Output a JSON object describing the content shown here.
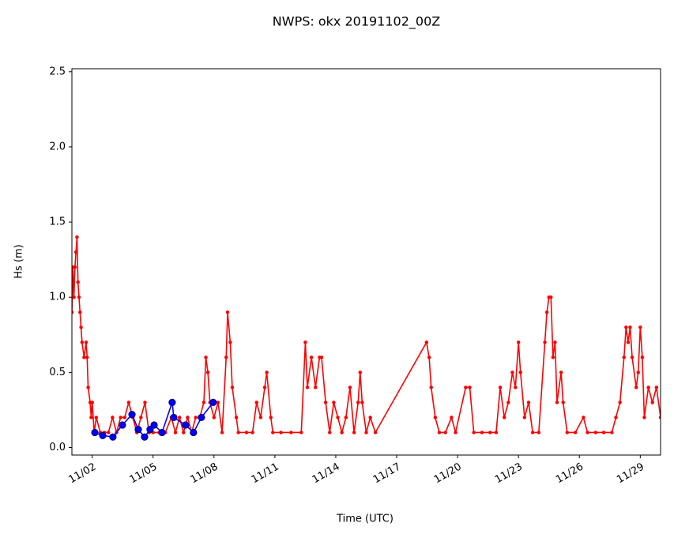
{
  "chart_data": {
    "type": "line",
    "title": "NWPS: okx 20191102_00Z",
    "x_label": "Time (UTC)",
    "y_label": "Hs (m)",
    "xlim": [
      1,
      30
    ],
    "ylim": [
      -0.05,
      2.52
    ],
    "xticks": [
      {
        "value": 2,
        "label": "11/02"
      },
      {
        "value": 5,
        "label": "11/05"
      },
      {
        "value": 8,
        "label": "11/08"
      },
      {
        "value": 11,
        "label": "11/11"
      },
      {
        "value": 14,
        "label": "11/14"
      },
      {
        "value": 17,
        "label": "11/17"
      },
      {
        "value": 20,
        "label": "11/20"
      },
      {
        "value": 23,
        "label": "11/23"
      },
      {
        "value": 26,
        "label": "11/26"
      },
      {
        "value": 29,
        "label": "11/29"
      }
    ],
    "yticks": [
      {
        "value": 0,
        "label": "0.0"
      },
      0.5,
      {
        "value": 1,
        "label": "1.0"
      },
      1.5,
      {
        "value": 2,
        "label": "2.0"
      },
      2.5
    ],
    "series": [
      {
        "color": "#ff0000",
        "marker": "dot",
        "x": [
          1.0,
          1.05,
          1.1,
          1.15,
          1.2,
          1.25,
          1.3,
          1.35,
          1.4,
          1.45,
          1.5,
          1.6,
          1.7,
          1.75,
          1.8,
          1.9,
          1.95,
          2.0,
          2.1,
          2.2,
          2.4,
          2.6,
          2.8,
          3.0,
          3.2,
          3.4,
          3.6,
          3.8,
          4.0,
          4.2,
          4.4,
          4.6,
          4.8,
          5.0,
          5.3,
          5.6,
          5.9,
          6.1,
          6.3,
          6.5,
          6.7,
          6.9,
          7.1,
          7.3,
          7.5,
          7.6,
          7.7,
          7.8,
          8.0,
          8.2,
          8.4,
          8.6,
          8.67,
          8.8,
          8.9,
          9.1,
          9.2,
          9.6,
          9.9,
          10.1,
          10.3,
          10.5,
          10.6,
          10.8,
          10.9,
          11.3,
          11.8,
          12.3,
          12.5,
          12.6,
          12.8,
          13.0,
          13.2,
          13.3,
          13.5,
          13.7,
          13.9,
          14.1,
          14.3,
          14.5,
          14.7,
          14.9,
          15.1,
          15.2,
          15.3,
          15.5,
          15.7,
          15.95,
          18.47,
          18.6,
          18.7,
          18.9,
          19.1,
          19.4,
          19.7,
          19.9,
          20.4,
          20.6,
          20.8,
          21.2,
          21.6,
          21.9,
          22.1,
          22.3,
          22.5,
          22.7,
          22.85,
          23.0,
          23.1,
          23.3,
          23.5,
          23.7,
          24.0,
          24.3,
          24.4,
          24.5,
          24.6,
          24.7,
          24.8,
          24.9,
          25.1,
          25.2,
          25.4,
          25.8,
          26.2,
          26.4,
          26.8,
          27.2,
          27.6,
          27.8,
          28.0,
          28.2,
          28.3,
          28.4,
          28.5,
          28.6,
          28.8,
          28.9,
          29.0,
          29.1,
          29.2,
          29.4,
          29.6,
          29.8,
          30.0
        ],
        "values": [
          0.9,
          1.2,
          1.0,
          1.2,
          1.3,
          1.4,
          1.1,
          1.0,
          0.9,
          0.8,
          0.7,
          0.6,
          0.7,
          0.6,
          0.4,
          0.3,
          0.2,
          0.3,
          0.1,
          0.2,
          0.1,
          0.1,
          0.1,
          0.2,
          0.1,
          0.2,
          0.2,
          0.3,
          0.2,
          0.1,
          0.2,
          0.3,
          0.1,
          0.1,
          0.1,
          0.1,
          0.2,
          0.1,
          0.2,
          0.1,
          0.2,
          0.1,
          0.2,
          0.2,
          0.3,
          0.6,
          0.5,
          0.3,
          0.2,
          0.3,
          0.1,
          0.6,
          0.9,
          0.7,
          0.4,
          0.2,
          0.1,
          0.1,
          0.1,
          0.3,
          0.2,
          0.4,
          0.5,
          0.2,
          0.1,
          0.1,
          0.1,
          0.1,
          0.7,
          0.4,
          0.6,
          0.4,
          0.6,
          0.6,
          0.3,
          0.1,
          0.3,
          0.2,
          0.1,
          0.2,
          0.4,
          0.1,
          0.3,
          0.5,
          0.3,
          0.1,
          0.2,
          0.1,
          0.7,
          0.6,
          0.4,
          0.2,
          0.1,
          0.1,
          0.2,
          0.1,
          0.4,
          0.4,
          0.1,
          0.1,
          0.1,
          0.1,
          0.4,
          0.2,
          0.3,
          0.5,
          0.4,
          0.7,
          0.5,
          0.2,
          0.3,
          0.1,
          0.1,
          0.7,
          0.9,
          1.0,
          1.0,
          0.6,
          0.7,
          0.3,
          0.5,
          0.3,
          0.1,
          0.1,
          0.2,
          0.1,
          0.1,
          0.1,
          0.1,
          0.2,
          0.3,
          0.6,
          0.8,
          0.7,
          0.8,
          0.6,
          0.4,
          0.5,
          0.8,
          0.6,
          0.2,
          0.4,
          0.3,
          0.4,
          0.2
        ]
      },
      {
        "color": "#0000ff",
        "marker": "circle",
        "x": [
          2.13,
          2.52,
          3.02,
          3.49,
          3.96,
          4.27,
          4.58,
          4.85,
          5.05,
          5.44,
          5.94,
          6.02,
          6.6,
          6.99,
          7.38,
          7.96
        ],
        "values": [
          0.1,
          0.08,
          0.07,
          0.15,
          0.22,
          0.12,
          0.07,
          0.12,
          0.15,
          0.1,
          0.3,
          0.2,
          0.15,
          0.1,
          0.2,
          0.3
        ]
      }
    ]
  }
}
